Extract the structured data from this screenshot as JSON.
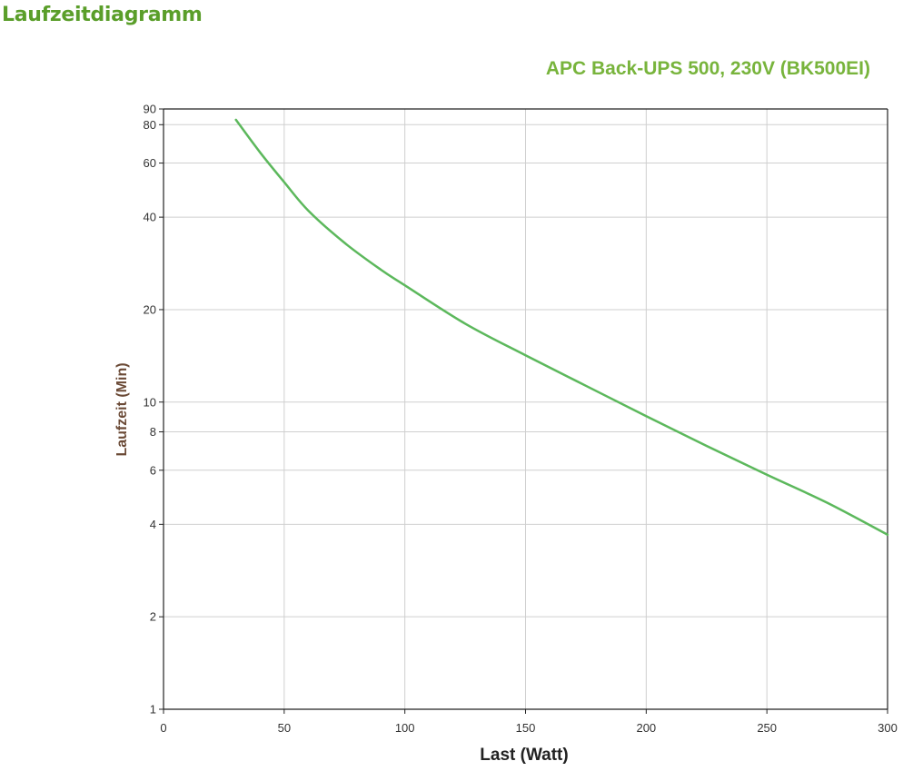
{
  "page": {
    "heading": "Laufzeitdiagramm"
  },
  "colors": {
    "heading": "#5a9e2a",
    "title": "#78b43c",
    "series": "#5cb85c",
    "ylabel": "#6b4a36"
  },
  "chart_data": {
    "type": "line",
    "title": "APC Back-UPS 500, 230V (BK500EI)",
    "xlabel": "Last (Watt)",
    "ylabel": "Laufzeit (Min)",
    "xlim": [
      0,
      300
    ],
    "ylim": [
      1,
      90
    ],
    "yscale": "log",
    "grid": true,
    "xticks": [
      0,
      50,
      100,
      150,
      200,
      250,
      300
    ],
    "xtick_labels": [
      "0",
      "50",
      "100",
      "150",
      "200",
      "250",
      "300"
    ],
    "yticks": [
      1,
      2,
      4,
      6,
      8,
      10,
      20,
      40,
      60,
      80,
      90
    ],
    "ytick_labels": [
      "1",
      "2",
      "4",
      "6",
      "8",
      "10",
      "20",
      "40",
      "60",
      "80",
      "90"
    ],
    "series": [
      {
        "x": [
          30,
          40,
          50,
          60,
          75,
          90,
          100,
          125,
          150,
          175,
          200,
          225,
          250,
          275,
          300
        ],
        "y": [
          83,
          65,
          52,
          42,
          33,
          27,
          24,
          18,
          14.2,
          11.3,
          9.0,
          7.2,
          5.8,
          4.7,
          3.7
        ]
      }
    ]
  }
}
